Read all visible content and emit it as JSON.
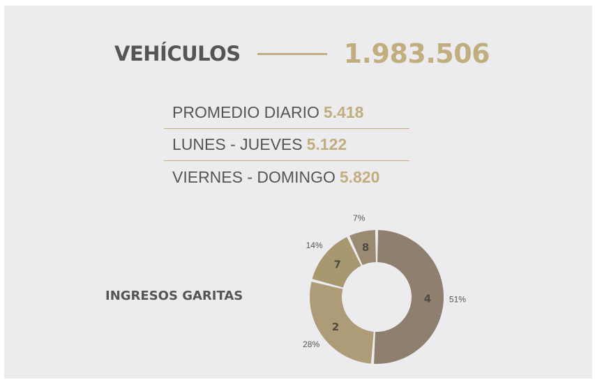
{
  "headline": {
    "label": "VEHÍCULOS",
    "value": "1.983.506"
  },
  "stats": [
    {
      "label": "PROMEDIO DIARIO",
      "value": "5.418"
    },
    {
      "label": "LUNES - JUEVES",
      "value": "5.122"
    },
    {
      "label": "VIERNES - DOMINGO",
      "value": "5.820"
    }
  ],
  "colors": {
    "accent": "#c1ae7e",
    "text": "#555555",
    "background": "#ececee"
  },
  "chart_data": {
    "type": "pie",
    "title": "INGRESOS GARITAS",
    "slices": [
      {
        "label": "4",
        "value": 51,
        "percent_label": "51%",
        "color": "#8f7f6e"
      },
      {
        "label": "2",
        "value": 28,
        "percent_label": "28%",
        "color": "#ad9c77"
      },
      {
        "label": "7",
        "value": 14,
        "percent_label": "14%",
        "color": "#a8986f"
      },
      {
        "label": "8",
        "value": 7,
        "percent_label": "7%",
        "color": "#9a8a72"
      }
    ]
  }
}
